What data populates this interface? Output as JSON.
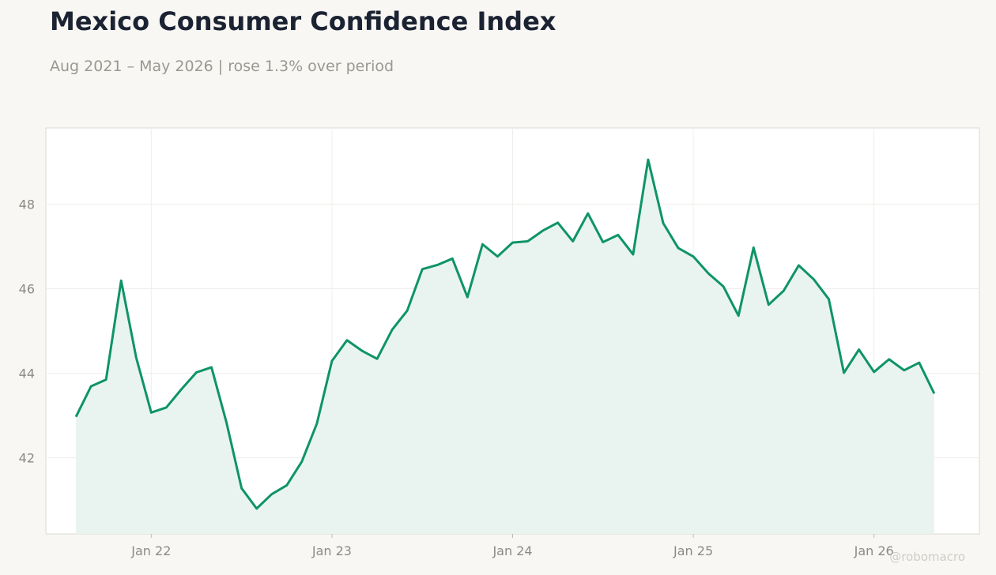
{
  "chart_data": {
    "type": "area",
    "title": "Mexico Consumer Confidence Index",
    "subtitle": "Aug 2021 – May 2026 | rose 1.3% over period",
    "xlabel": "",
    "ylabel": "",
    "x_tick_labels": [
      "Jan 22",
      "Jan 23",
      "Jan 24",
      "Jan 25",
      "Jan 26"
    ],
    "y_ticks": [
      42,
      44,
      46,
      48
    ],
    "ylim": [
      40.2,
      49.8
    ],
    "xlim": [
      "2021-06",
      "2026-08"
    ],
    "grid": true,
    "x": [
      "2021-08",
      "2021-09",
      "2021-10",
      "2021-11",
      "2021-12",
      "2022-01",
      "2022-02",
      "2022-03",
      "2022-04",
      "2022-05",
      "2022-06",
      "2022-07",
      "2022-08",
      "2022-09",
      "2022-10",
      "2022-11",
      "2022-12",
      "2023-01",
      "2023-02",
      "2023-03",
      "2023-04",
      "2023-05",
      "2023-06",
      "2023-07",
      "2023-08",
      "2023-09",
      "2023-10",
      "2023-11",
      "2023-12",
      "2024-01",
      "2024-02",
      "2024-03",
      "2024-04",
      "2024-05",
      "2024-06",
      "2024-07",
      "2024-08",
      "2024-09",
      "2024-10",
      "2024-11",
      "2024-12",
      "2025-01",
      "2025-02",
      "2025-03",
      "2025-04",
      "2025-05",
      "2025-06",
      "2025-07",
      "2025-08",
      "2025-09",
      "2025-10",
      "2025-11",
      "2025-12",
      "2026-01",
      "2026-02",
      "2026-03",
      "2026-04",
      "2026-05"
    ],
    "series": [
      {
        "color": "#0f9466",
        "fill": "#e9f4f0",
        "values": [
          42.97,
          43.69,
          43.85,
          46.19,
          44.37,
          43.07,
          43.19,
          43.62,
          44.02,
          44.14,
          42.83,
          41.28,
          40.8,
          41.14,
          41.35,
          41.91,
          42.81,
          44.29,
          44.78,
          44.53,
          44.34,
          45.03,
          45.48,
          46.46,
          46.56,
          46.71,
          45.8,
          47.05,
          46.76,
          47.09,
          47.12,
          47.37,
          47.56,
          47.12,
          47.78,
          47.1,
          47.27,
          46.81,
          49.05,
          47.55,
          46.96,
          46.76,
          46.36,
          46.05,
          45.36,
          46.97,
          45.62,
          45.95,
          46.55,
          46.22,
          45.75,
          44.01,
          44.56,
          44.03,
          44.33,
          44.07,
          44.25,
          43.52
        ]
      }
    ]
  },
  "watermark": "@robomacro"
}
